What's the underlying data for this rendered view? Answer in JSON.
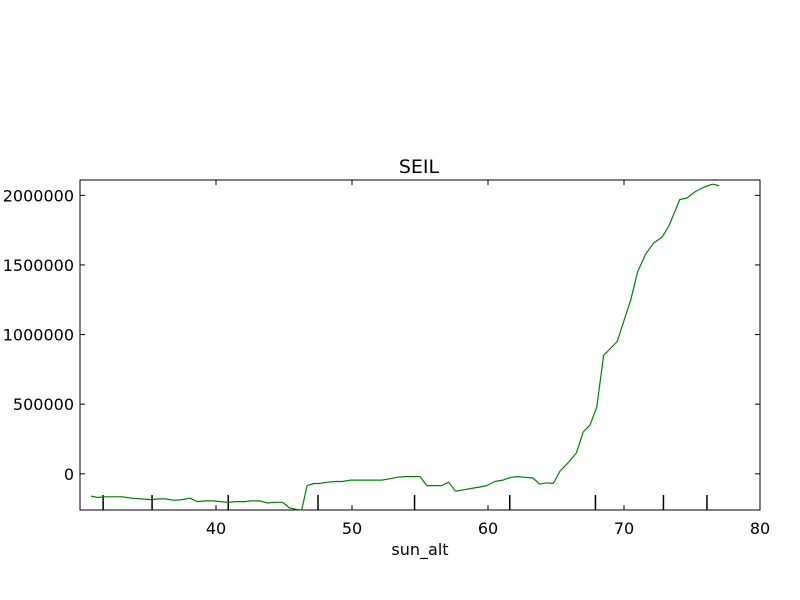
{
  "chart_data": {
    "type": "line",
    "title": "SEIL",
    "xlabel": "sun_alt",
    "ylabel": "",
    "xlim": [
      30,
      80
    ],
    "ylim": [
      -260000,
      2110000
    ],
    "grid": false,
    "legend": "none",
    "x_ticks": [
      40,
      50,
      60,
      70,
      80
    ],
    "y_ticks": [
      0,
      500000,
      1000000,
      1500000,
      2000000
    ],
    "x_tick_labels": [
      "40",
      "50",
      "60",
      "70",
      "80"
    ],
    "y_tick_labels": [
      "0",
      "500000",
      "1000000",
      "1500000",
      "2000000"
    ],
    "rug_x": [
      31.7,
      35.3,
      40.9,
      47.5,
      54.6,
      61.6,
      67.9,
      72.9,
      76.1
    ],
    "series": [
      {
        "name": "",
        "color": "#008000",
        "x": [
          30.8,
          31.3,
          31.8,
          32.4,
          33.1,
          33.8,
          34.5,
          35.2,
          35.8,
          36.3,
          36.9,
          37.5,
          38.1,
          38.6,
          39.2,
          39.8,
          40.3,
          40.9,
          41.5,
          42.1,
          42.6,
          43.2,
          43.8,
          44.3,
          44.9,
          45.4,
          45.9,
          46.3,
          46.7,
          47.2,
          47.6,
          48.2,
          48.8,
          49.3,
          49.9,
          50.5,
          51.0,
          51.6,
          52.2,
          52.8,
          53.3,
          53.9,
          54.4,
          55.0,
          55.5,
          56.0,
          56.6,
          57.1,
          57.6,
          58.2,
          58.8,
          59.4,
          59.9,
          60.5,
          61.1,
          61.7,
          62.2,
          62.7,
          63.3,
          63.8,
          64.3,
          64.8,
          65.3,
          65.9,
          66.5,
          67.0,
          67.5,
          68.0,
          68.5,
          69.0,
          69.5,
          70.0,
          70.5,
          71.0,
          71.6,
          72.2,
          72.8,
          73.3,
          74.1,
          74.6,
          75.3,
          75.9,
          76.5,
          77.0
        ],
        "y": [
          -160000,
          -170000,
          -165000,
          -165000,
          -165000,
          -175000,
          -180000,
          -185000,
          -180000,
          -180000,
          -190000,
          -185000,
          -175000,
          -200000,
          -195000,
          -195000,
          -200000,
          -205000,
          -200000,
          -200000,
          -195000,
          -195000,
          -210000,
          -205000,
          -205000,
          -245000,
          -255000,
          -260000,
          -85000,
          -70000,
          -70000,
          -60000,
          -55000,
          -55000,
          -45000,
          -45000,
          -45000,
          -45000,
          -45000,
          -35000,
          -25000,
          -20000,
          -20000,
          -20000,
          -85000,
          -85000,
          -85000,
          -60000,
          -125000,
          -115000,
          -105000,
          -95000,
          -85000,
          -55000,
          -45000,
          -25000,
          -20000,
          -25000,
          -30000,
          -75000,
          -65000,
          -70000,
          20000,
          80000,
          150000,
          300000,
          350000,
          480000,
          850000,
          900000,
          950000,
          1100000,
          1250000,
          1450000,
          1580000,
          1660000,
          1700000,
          1780000,
          1970000,
          1980000,
          2030000,
          2060000,
          2080000,
          2070000
        ]
      }
    ]
  }
}
